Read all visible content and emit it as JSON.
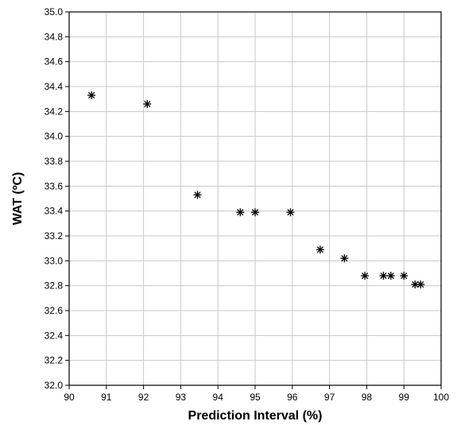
{
  "chart_data": {
    "type": "scatter",
    "xlabel": "Prediction Interval (%)",
    "ylabel": "WAT (ºC)",
    "xlim": [
      90,
      100
    ],
    "ylim": [
      32.0,
      35.0
    ],
    "xticks": [
      "90",
      "91",
      "92",
      "93",
      "94",
      "95",
      "96",
      "97",
      "98",
      "99",
      "100"
    ],
    "yticks": [
      "32.0",
      "32.2",
      "32.4",
      "32.6",
      "32.8",
      "33.0",
      "33.2",
      "33.4",
      "33.6",
      "33.8",
      "34.0",
      "34.2",
      "34.4",
      "34.6",
      "34.8",
      "35.0"
    ],
    "grid": true,
    "marker": "asterisk",
    "points": [
      {
        "x": 90.6,
        "y": 34.33
      },
      {
        "x": 92.1,
        "y": 34.26
      },
      {
        "x": 93.45,
        "y": 33.53
      },
      {
        "x": 94.6,
        "y": 33.39
      },
      {
        "x": 95.0,
        "y": 33.39
      },
      {
        "x": 95.95,
        "y": 33.39
      },
      {
        "x": 96.75,
        "y": 33.09
      },
      {
        "x": 97.4,
        "y": 33.02
      },
      {
        "x": 97.95,
        "y": 32.88
      },
      {
        "x": 98.45,
        "y": 32.88
      },
      {
        "x": 98.65,
        "y": 32.88
      },
      {
        "x": 99.0,
        "y": 32.88
      },
      {
        "x": 99.3,
        "y": 32.81
      },
      {
        "x": 99.45,
        "y": 32.81
      }
    ]
  }
}
